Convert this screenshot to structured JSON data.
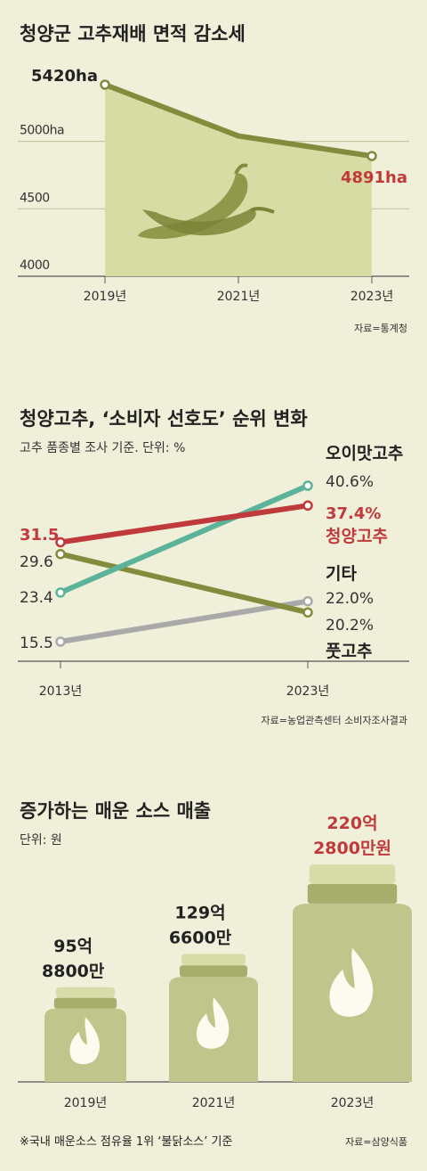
{
  "chart_data": [
    {
      "type": "area",
      "title": "청양군 고추재배 면적 감소세",
      "x": [
        "2019년",
        "2021년",
        "2023년"
      ],
      "values": [
        5420,
        5040,
        4891
      ],
      "value_labels": [
        "5420ha",
        "",
        "4891ha"
      ],
      "yticks": [
        "5000ha",
        "4500",
        "4000"
      ],
      "ylim": [
        3900,
        5600
      ],
      "source": "자료=통계청",
      "colors": {
        "fill": "#d7dba4",
        "line": "#838c3c",
        "highlight": "#c0393b"
      }
    },
    {
      "type": "line",
      "title": "청양고추, ‘소비자 선호도’ 순위 변화",
      "subtitle": "고추 품종별 조사 기준. 단위: %",
      "x": [
        "2013년",
        "2023년"
      ],
      "series": [
        {
          "name": "오이맛고추",
          "values": [
            23.4,
            40.6
          ],
          "labels": [
            "23.4",
            "40.6%"
          ],
          "color": "#5bb39a"
        },
        {
          "name": "청양고추",
          "values": [
            31.5,
            37.4
          ],
          "labels": [
            "31.5",
            "37.4%"
          ],
          "color": "#c0393b"
        },
        {
          "name": "풋고추",
          "values": [
            29.6,
            20.2
          ],
          "labels": [
            "29.6",
            "20.2%"
          ],
          "color": "#838c3c"
        },
        {
          "name": "기타",
          "values": [
            15.5,
            22.0
          ],
          "labels": [
            "15.5",
            "22.0%"
          ],
          "color": "#a9a9a9"
        }
      ],
      "ylim": [
        13,
        42
      ],
      "source": "자료=농업관측센터 소비자조사결과"
    },
    {
      "type": "bar",
      "title": "증가하는 매운 소스 매출",
      "subtitle": "단위: 원",
      "categories": [
        "2019년",
        "2021년",
        "2023년"
      ],
      "values": [
        9588000000,
        12966000000,
        22028000000
      ],
      "value_labels": [
        [
          "95억",
          "8800만"
        ],
        [
          "129억",
          "6600만"
        ],
        [
          "220억",
          "2800만원"
        ]
      ],
      "note": "※국내 매운소스 점유율 1위 ‘불닭소스’ 기준",
      "source": "자료=삼양식품",
      "colors": {
        "bottle": "#bfc58b",
        "cap": "#d8dca9",
        "highlight": "#c0393b"
      }
    }
  ]
}
